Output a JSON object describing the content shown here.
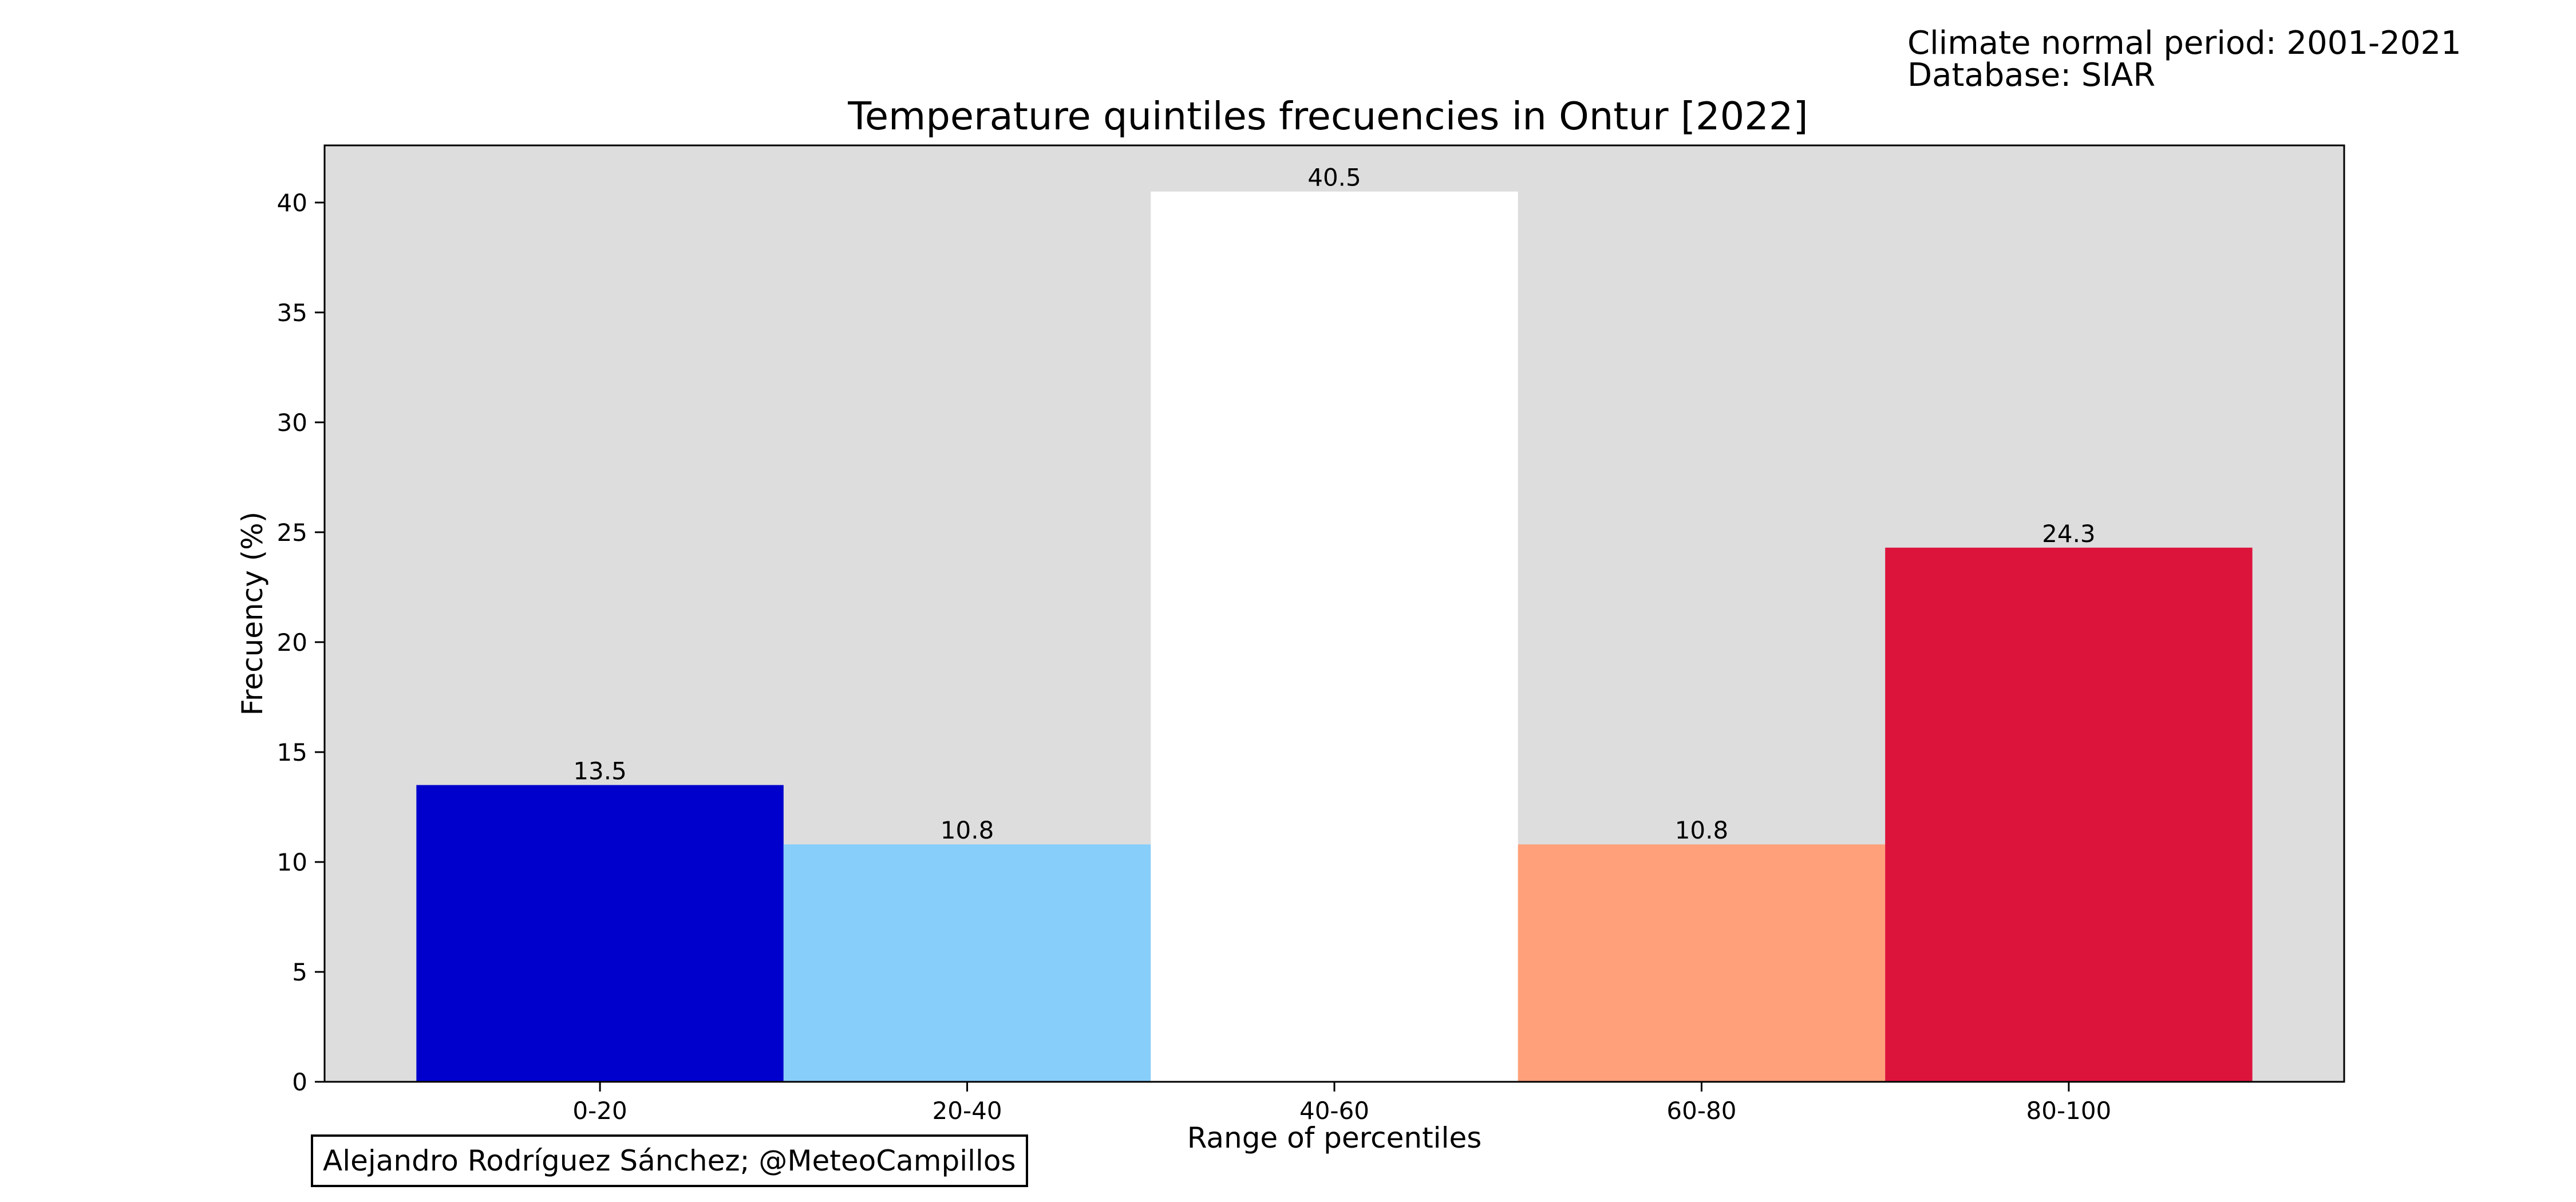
{
  "header": {
    "normal_period": "Climate normal period: 2001-2021",
    "database": "Database: SIAR"
  },
  "credit": "Alejandro Rodríguez Sánchez; @MeteoCampillos",
  "chart_data": {
    "type": "bar",
    "title": "Temperature quintiles frecuencies in Ontur [2022]",
    "xlabel": "Range of percentiles",
    "ylabel": "Frecuency (%)",
    "categories": [
      "0-20",
      "20-40",
      "40-60",
      "60-80",
      "80-100"
    ],
    "values": [
      13.5,
      10.8,
      40.5,
      10.8,
      24.3
    ],
    "value_labels": [
      "13.5",
      "10.8",
      "40.5",
      "10.8",
      "24.3"
    ],
    "bar_colors": [
      "#0000cd",
      "#87cefa",
      "#ffffff",
      "#ffa07a",
      "#dc143c"
    ],
    "ylim": [
      0,
      42.6
    ],
    "yticks": [
      0,
      5,
      10,
      15,
      20,
      25,
      30,
      35,
      40
    ],
    "plot_background": "#dddddd",
    "grid": false,
    "legend": "none"
  }
}
